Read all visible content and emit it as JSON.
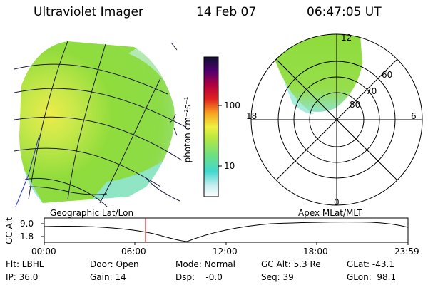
{
  "header": {
    "title": "Ultraviolet Imager",
    "date": "14 Feb 07",
    "time": "06:47:05 UT"
  },
  "colorbar": {
    "unit_label": "photon cm⁻²s⁻¹",
    "ticks": [
      "100",
      "10"
    ]
  },
  "polar": {
    "labels": {
      "top": "12",
      "bottom": "0",
      "left": "18",
      "right": "6"
    },
    "lat_labels": [
      "60",
      "70",
      "80"
    ]
  },
  "timeline": {
    "left_title": "Geographic Lat/Lon",
    "right_title": "Apex MLat/MLT",
    "axis_label": "GC Alt",
    "y_ticks": [
      "9.0",
      "1.8"
    ],
    "x_ticks": [
      "00:00",
      "06:00",
      "12:00",
      "18:00",
      "23:59"
    ],
    "marker_time": "06:47"
  },
  "info": {
    "flt": "Flt: LBHL",
    "door": "Door: Open",
    "mode": "Mode: Normal",
    "gcalt": "GC Alt: 5.3 Re",
    "glat": "GLat: -43.1",
    "ip": "IP: 36.0",
    "gain": "Gain: 14",
    "dsp": "Dsp:    -0.0",
    "seq": "Seq: 39",
    "glon": "GLon:  98.1"
  },
  "colors": {
    "aurora_green": "#8fdc3c",
    "aurora_yellow": "#ecec4a",
    "aurora_cyan": "#6fe0d8",
    "marker": "#cc0000"
  }
}
